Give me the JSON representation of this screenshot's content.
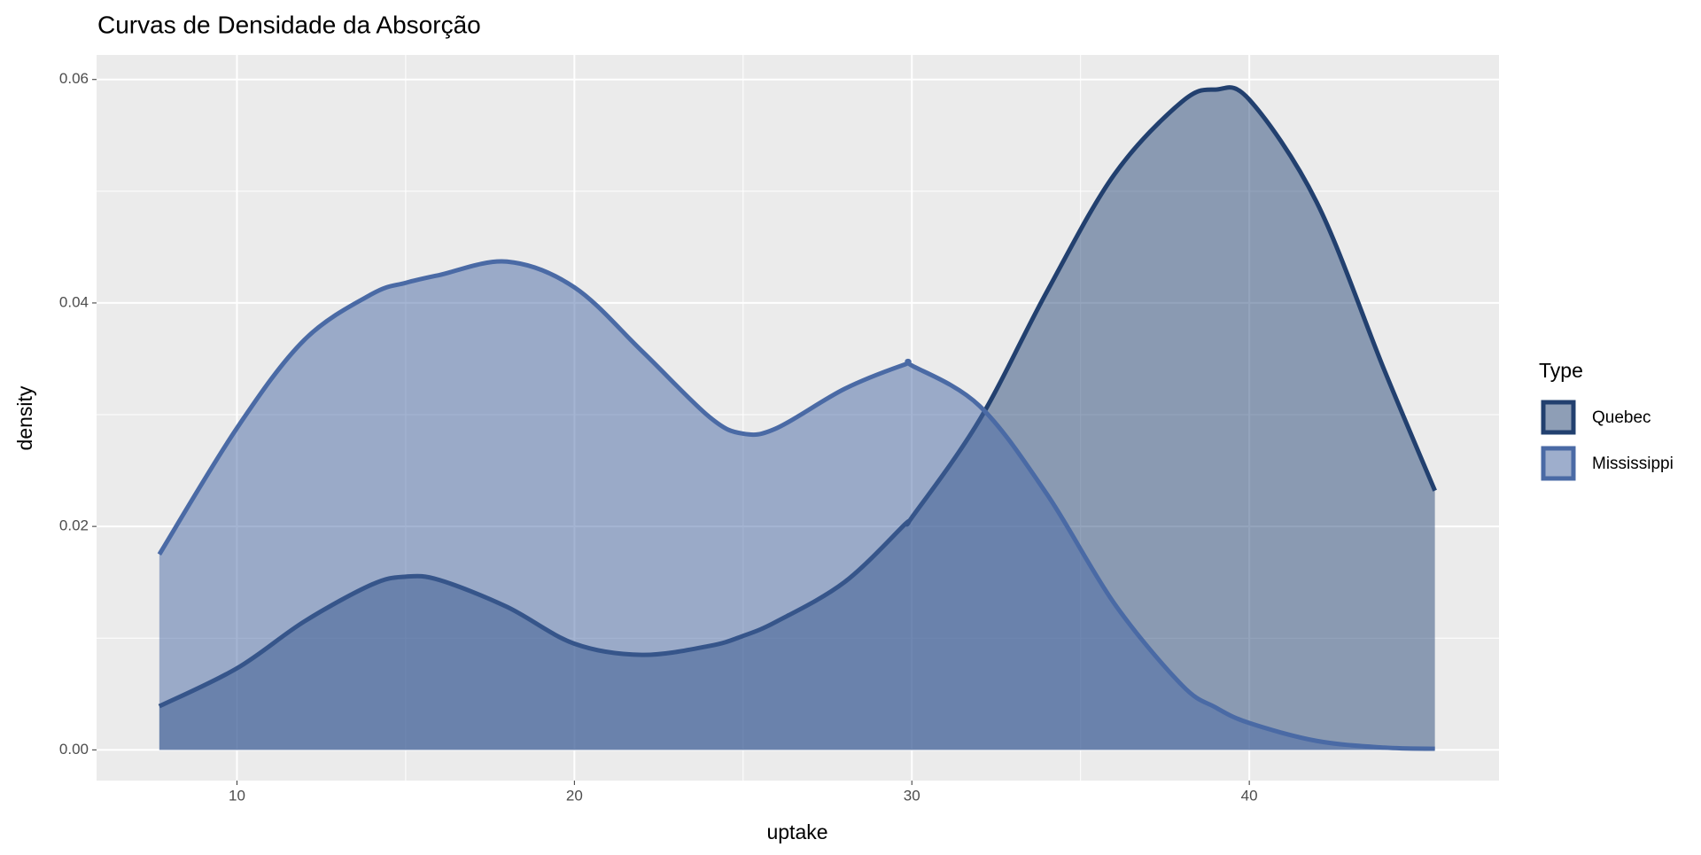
{
  "chart_data": {
    "type": "density",
    "title": "Curvas de Densidade da Absorção",
    "x_label": "uptake",
    "y_label": "density",
    "legend_title": "Type",
    "legend_position": "right",
    "grid": true,
    "x": [
      7.7,
      10,
      12,
      14,
      15,
      16,
      18,
      20,
      22,
      24,
      25,
      26,
      28,
      29.8,
      30,
      32,
      34,
      36,
      38,
      39,
      40,
      42,
      44,
      45.5
    ],
    "series": [
      {
        "name": "Quebec",
        "color": "#22406f",
        "fill": "#2a4a7a",
        "values": [
          0.0039,
          0.0073,
          0.0115,
          0.0148,
          0.0155,
          0.0152,
          0.0128,
          0.0095,
          0.0085,
          0.0093,
          0.0102,
          0.0115,
          0.015,
          0.0202,
          0.0208,
          0.0295,
          0.041,
          0.0515,
          0.058,
          0.0591,
          0.0582,
          0.049,
          0.034,
          0.0232
        ]
      },
      {
        "name": "Mississippi",
        "color": "#4a6aa5",
        "fill": "#4a6aa5",
        "values": [
          0.0175,
          0.0288,
          0.0367,
          0.0408,
          0.0418,
          0.0425,
          0.0437,
          0.0414,
          0.0357,
          0.0298,
          0.0283,
          0.0288,
          0.0323,
          0.0345,
          0.0344,
          0.0308,
          0.0229,
          0.0131,
          0.0058,
          0.0038,
          0.0024,
          0.0008,
          0.0002,
          0.0001
        ]
      }
    ],
    "xlim": [
      5.84,
      47.4
    ],
    "xticks": [
      10,
      20,
      30,
      40
    ],
    "ylim": [
      -0.00275,
      0.0622
    ],
    "yticks": [
      {
        "value": 0,
        "label": "0.00"
      },
      0.02,
      0.04,
      0.06
    ]
  }
}
